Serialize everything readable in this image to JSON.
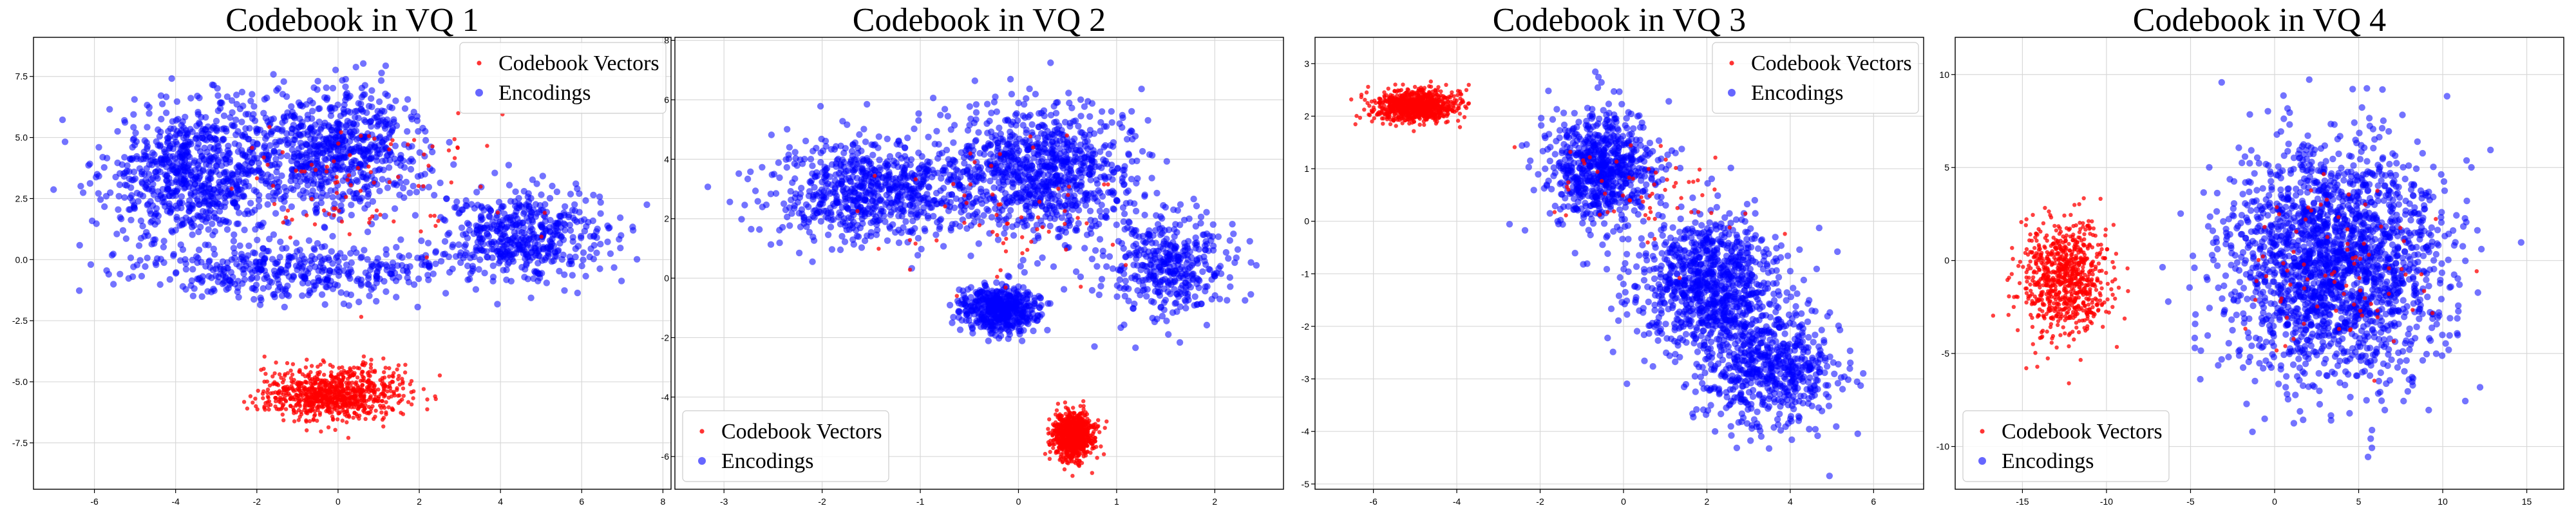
{
  "chart_data": [
    {
      "type": "scatter",
      "title": "Codebook in VQ 1",
      "xlim": [
        -7.5,
        8.2
      ],
      "ylim": [
        -9.4,
        9.1
      ],
      "xticks": [
        -6,
        -4,
        -2,
        0,
        2,
        4,
        6,
        8
      ],
      "yticks": [
        -7.5,
        -5.0,
        -2.5,
        0.0,
        2.5,
        5.0,
        7.5
      ],
      "xtick_labels": [
        "-6",
        "-4",
        "-2",
        "0",
        "2",
        "4",
        "6",
        "8"
      ],
      "ytick_labels": [
        "-7.5",
        "-5.0",
        "-2.5",
        "0.0",
        "2.5",
        "5.0",
        "7.5"
      ],
      "grid": true,
      "legend": {
        "position": "top-right",
        "entries": [
          "Codebook Vectors",
          "Encodings"
        ]
      },
      "series": [
        {
          "name": "Codebook Vectors",
          "color": "#ff0000",
          "clusters": [
            {
              "center": [
                -0.1,
                -5.5
              ],
              "spread": [
                1.55,
                0.95
              ],
              "count": 900
            },
            {
              "center": [
                0.5,
                3.0
              ],
              "spread": [
                3.0,
                2.5
              ],
              "count": 90
            }
          ]
        },
        {
          "name": "Encodings",
          "color": "#0000ff",
          "clusters": [
            {
              "center": [
                -3.5,
                3.5
              ],
              "spread": [
                2.0,
                2.6
              ],
              "count": 800
            },
            {
              "center": [
                0.0,
                4.5
              ],
              "spread": [
                2.0,
                2.4
              ],
              "count": 700
            },
            {
              "center": [
                4.5,
                1.0
              ],
              "spread": [
                1.8,
                1.6
              ],
              "count": 500
            },
            {
              "center": [
                -1.0,
                -0.5
              ],
              "spread": [
                3.5,
                1.0
              ],
              "count": 400
            }
          ]
        }
      ]
    },
    {
      "type": "scatter",
      "title": "Codebook in VQ 2",
      "xlim": [
        -3.5,
        2.7
      ],
      "ylim": [
        -7.1,
        8.1
      ],
      "xticks": [
        -3,
        -2,
        -1,
        0,
        1,
        2
      ],
      "yticks": [
        -6,
        -4,
        -2,
        0,
        2,
        4,
        6,
        8
      ],
      "xtick_labels": [
        "-3",
        "-2",
        "-1",
        "0",
        "1",
        "2"
      ],
      "ytick_labels": [
        "-6",
        "-4",
        "-2",
        "0",
        "2",
        "4",
        "6",
        "8"
      ],
      "grid": true,
      "legend": {
        "position": "bottom-left",
        "entries": [
          "Codebook Vectors",
          "Encodings"
        ]
      },
      "series": [
        {
          "name": "Codebook Vectors",
          "color": "#ff0000",
          "clusters": [
            {
              "center": [
                0.55,
                -5.3
              ],
              "spread": [
                0.18,
                0.75
              ],
              "count": 900
            },
            {
              "center": [
                0.0,
                2.0
              ],
              "spread": [
                1.0,
                2.0
              ],
              "count": 60
            }
          ]
        },
        {
          "name": "Encodings",
          "color": "#0000ff",
          "clusters": [
            {
              "center": [
                -1.5,
                3.0
              ],
              "spread": [
                0.9,
                1.6
              ],
              "count": 700
            },
            {
              "center": [
                0.2,
                3.5
              ],
              "spread": [
                0.9,
                2.0
              ],
              "count": 900
            },
            {
              "center": [
                -0.2,
                -1.0
              ],
              "spread": [
                0.35,
                0.7
              ],
              "count": 500
            },
            {
              "center": [
                1.5,
                0.5
              ],
              "spread": [
                0.6,
                1.5
              ],
              "count": 400
            }
          ]
        }
      ]
    },
    {
      "type": "scatter",
      "title": "Codebook in VQ 3",
      "xlim": [
        -7.4,
        7.2
      ],
      "ylim": [
        -5.1,
        3.5
      ],
      "xticks": [
        -6,
        -4,
        -2,
        0,
        2,
        4,
        6
      ],
      "yticks": [
        -5,
        -4,
        -3,
        -2,
        -1,
        0,
        1,
        2,
        3
      ],
      "xtick_labels": [
        "-6",
        "-4",
        "-2",
        "0",
        "2",
        "4",
        "6"
      ],
      "ytick_labels": [
        "-5",
        "-4",
        "-3",
        "-2",
        "-1",
        "0",
        "1",
        "2",
        "3"
      ],
      "grid": true,
      "legend": {
        "position": "top-right",
        "entries": [
          "Codebook Vectors",
          "Encodings"
        ]
      },
      "series": [
        {
          "name": "Codebook Vectors",
          "color": "#ff0000",
          "clusters": [
            {
              "center": [
                -5.0,
                2.2
              ],
              "spread": [
                0.9,
                0.28
              ],
              "count": 900
            },
            {
              "center": [
                0.5,
                0.5
              ],
              "spread": [
                2.0,
                1.2
              ],
              "count": 60
            }
          ]
        },
        {
          "name": "Encodings",
          "color": "#0000ff",
          "clusters": [
            {
              "center": [
                -0.5,
                1.0
              ],
              "spread": [
                1.2,
                1.0
              ],
              "count": 700
            },
            {
              "center": [
                2.0,
                -1.2
              ],
              "spread": [
                1.6,
                1.2
              ],
              "count": 900
            },
            {
              "center": [
                3.5,
                -2.8
              ],
              "spread": [
                1.5,
                1.0
              ],
              "count": 600
            }
          ]
        }
      ]
    },
    {
      "type": "scatter",
      "title": "Codebook in VQ 4",
      "xlim": [
        -19.0,
        17.2
      ],
      "ylim": [
        -12.3,
        12.0
      ],
      "xticks": [
        -15,
        -10,
        -5,
        0,
        5,
        10,
        15
      ],
      "yticks": [
        -10,
        -5,
        0,
        5,
        10
      ],
      "xtick_labels": [
        "-15",
        "-10",
        "-5",
        "0",
        "5",
        "10",
        "15"
      ],
      "ytick_labels": [
        "-10",
        "-5",
        "0",
        "5",
        "10"
      ],
      "grid": true,
      "legend": {
        "position": "bottom-left",
        "entries": [
          "Codebook Vectors",
          "Encodings"
        ]
      },
      "series": [
        {
          "name": "Codebook Vectors",
          "color": "#ff0000",
          "clusters": [
            {
              "center": [
                -12.5,
                -1.0
              ],
              "spread": [
                2.3,
                2.8
              ],
              "count": 800
            },
            {
              "center": [
                4.0,
                0.0
              ],
              "spread": [
                6.0,
                5.0
              ],
              "count": 80
            }
          ]
        },
        {
          "name": "Encodings",
          "color": "#0000ff",
          "clusters": [
            {
              "center": [
                3.5,
                0.0
              ],
              "spread": [
                5.8,
                5.8
              ],
              "count": 2000
            }
          ]
        }
      ]
    }
  ]
}
